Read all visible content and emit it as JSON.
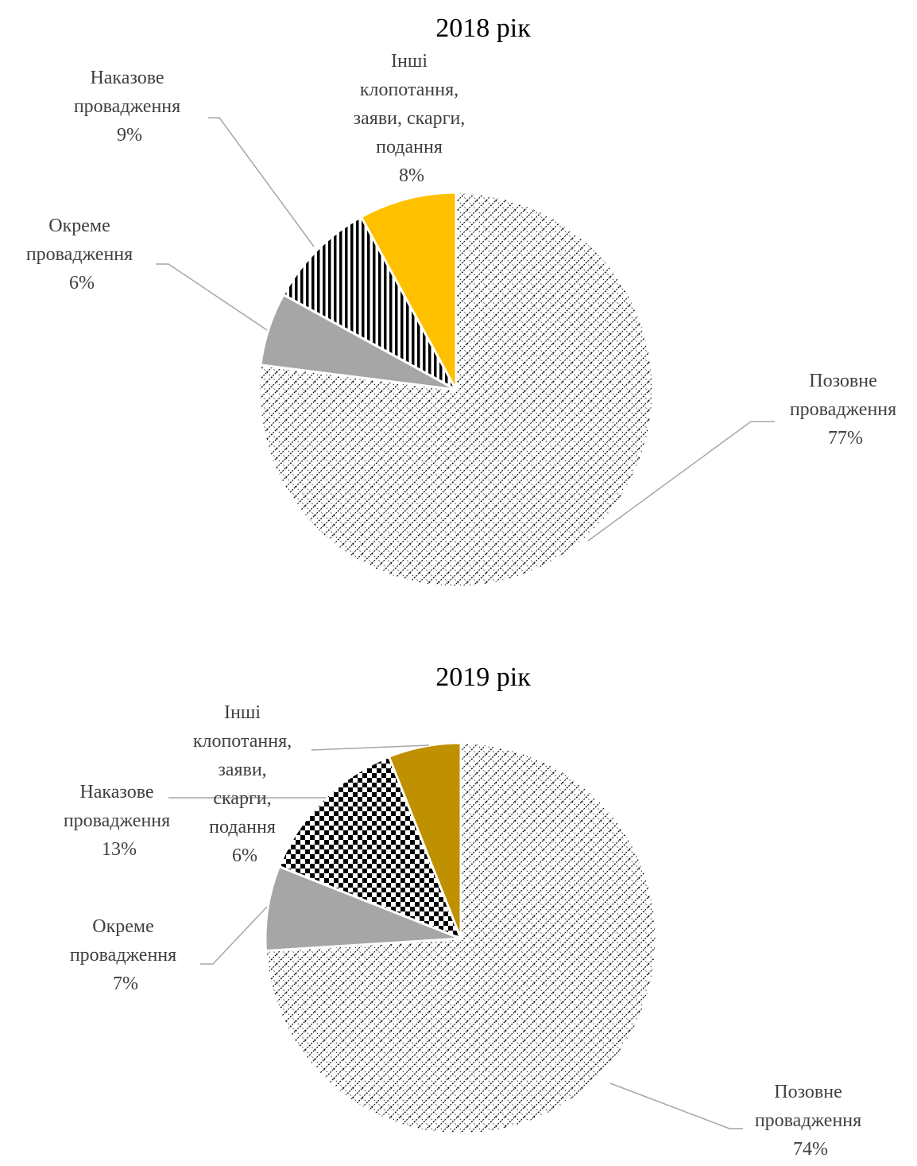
{
  "chart_data": [
    {
      "type": "pie",
      "title": "2018 рік",
      "slices": [
        {
          "name": "Позовне провадження",
          "label_lines": [
            "Позовне",
            "провадження"
          ],
          "value": 77,
          "value_label": "77%",
          "fill": "crosshatch-fine"
        },
        {
          "name": "Окреме провадження",
          "label_lines": [
            "Окреме",
            "провадження"
          ],
          "value": 6,
          "value_label": "6%",
          "fill": "#a6a6a6"
        },
        {
          "name": "Наказове провадження",
          "label_lines": [
            "Наказове",
            "провадження"
          ],
          "value": 9,
          "value_label": "9%",
          "fill": "vertical-stripes"
        },
        {
          "name": "Інші клопотання, заяви, скарги, подання",
          "label_lines": [
            "Інші",
            "клопотання,",
            "заяви, скарги,",
            "подання"
          ],
          "value": 8,
          "value_label": "8%",
          "fill": "#ffc000"
        }
      ]
    },
    {
      "type": "pie",
      "title": "2019 рік",
      "slices": [
        {
          "name": "Позовне провадження",
          "label_lines": [
            "Позовне",
            "провадження"
          ],
          "value": 74,
          "value_label": "74%",
          "fill": "crosshatch-fine"
        },
        {
          "name": "Окреме провадження",
          "label_lines": [
            "Окреме",
            "провадження"
          ],
          "value": 7,
          "value_label": "7%",
          "fill": "#a6a6a6"
        },
        {
          "name": "Наказове провадження",
          "label_lines": [
            "Наказове",
            "провадження"
          ],
          "value": 13,
          "value_label": "13%",
          "fill": "checkerboard"
        },
        {
          "name": "Інші клопотання, заяви, скарги, подання",
          "label_lines": [
            "Інші",
            "клопотання,",
            "заяви,",
            "скарги,",
            "подання"
          ],
          "value": 6,
          "value_label": "6%",
          "fill": "#bf9000"
        }
      ]
    }
  ]
}
